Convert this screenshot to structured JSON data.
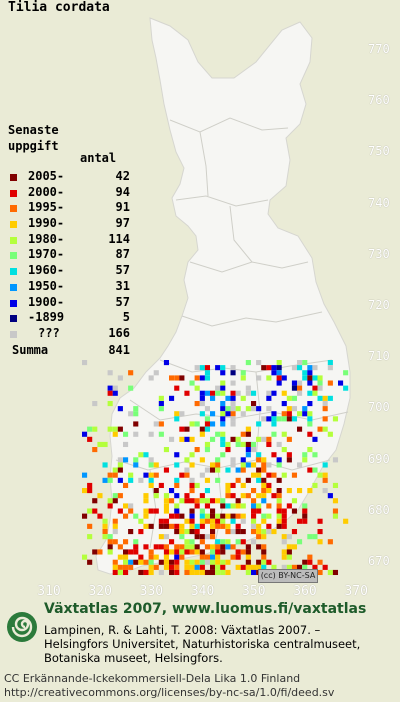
{
  "species": "Tilia cordata",
  "legend": {
    "heading_line1": "Senaste",
    "heading_line2": "uppgift",
    "count_header": "antal",
    "rows": [
      {
        "label": "2005-",
        "count": "42",
        "color": "#800000"
      },
      {
        "label": "2000-",
        "count": "94",
        "color": "#e00000"
      },
      {
        "label": "1995-",
        "count": "91",
        "color": "#ff6a00"
      },
      {
        "label": "1990-",
        "count": "97",
        "color": "#ffcc00"
      },
      {
        "label": "1980-",
        "count": "114",
        "color": "#b4ff3c"
      },
      {
        "label": "1970-",
        "count": "87",
        "color": "#78ff78"
      },
      {
        "label": "1960-",
        "count": "57",
        "color": "#00e0e0"
      },
      {
        "label": "1950-",
        "count": "31",
        "color": "#0096ff"
      },
      {
        "label": "1900-",
        "count": "57",
        "color": "#0000e6"
      },
      {
        "label": "-1899",
        "count": "5",
        "color": "#000080"
      },
      {
        "label": "???",
        "count": "166",
        "color": "#c8c8c8"
      }
    ],
    "total_label": "Summa",
    "total_count": "841"
  },
  "y_axis": [
    "770",
    "760",
    "750",
    "740",
    "730",
    "720",
    "710",
    "700",
    "690",
    "680",
    "670"
  ],
  "x_axis": [
    "310",
    "320",
    "330",
    "340",
    "350",
    "360",
    "370"
  ],
  "cc_badge": "(cc) BY-NC-SA",
  "atlas_title": "Växtatlas 2007, www.luomus.fi/vaxtatlas",
  "citation_lines": [
    "Lampinen, R. & Lahti, T. 2008: Växtatlas 2007. –",
    "Helsingfors Universitet, Naturhistoriska centralmuseet,",
    "Botaniska museet, Helsingfors."
  ],
  "license_lines": [
    "CC Erkännande-Ickekommersiell-Dela Lika 1.0 Finland",
    "http://creativecommons.org/licenses/by-nc-sa/1.0/fi/deed.sv"
  ],
  "colors": {
    "background": "#eaebd6",
    "land": "#f6f6f3",
    "borders": "#c9c9c4",
    "title_green": "#1e5b2a"
  }
}
